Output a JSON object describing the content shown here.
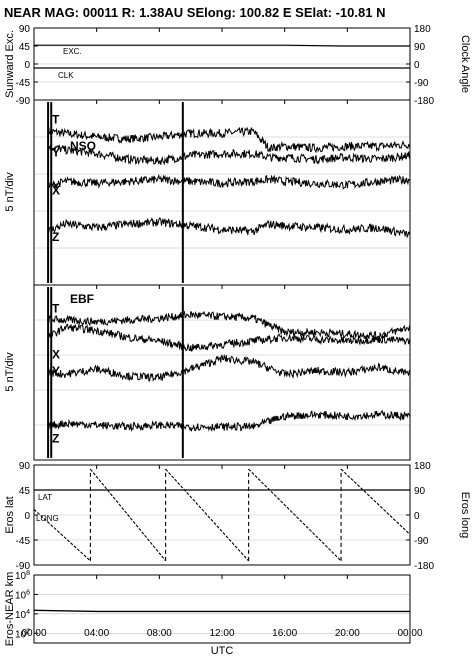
{
  "title": "NEAR MAG: 00011  R: 1.38AU  SElong: 100.82 E  SElat: -10.81 N",
  "x_axis": {
    "label": "UTC",
    "ticks": [
      "00:00",
      "04:00",
      "08:00",
      "12:00",
      "16:00",
      "20:00",
      "00:00"
    ]
  },
  "chart_data": [
    {
      "type": "line",
      "panel": "sunward",
      "ylabel": "Sunward Exc.",
      "ylabel_right": "Clock Angle",
      "ylim": [
        -90,
        90
      ],
      "ylim_right": [
        -180,
        180
      ],
      "yticks": [
        "90",
        "45",
        "0",
        "-45",
        "-90"
      ],
      "yticks_right": [
        "180",
        "90",
        "0",
        "-90",
        "-180"
      ],
      "grid": true,
      "x": [
        0,
        4,
        8,
        12,
        16,
        19.6,
        24
      ],
      "series": [
        {
          "name": "EXC.",
          "values": [
            47,
            47,
            47,
            47,
            47,
            45,
            45
          ]
        },
        {
          "name": "CLK",
          "values": [
            -10,
            -10,
            -10,
            -10,
            -10,
            -10,
            -10
          ]
        }
      ]
    },
    {
      "type": "line",
      "panel": "NSO",
      "panel_label": "NSO",
      "ylabel": "5 nT/div",
      "grid": true,
      "x": [
        0,
        2,
        4,
        6,
        8,
        10,
        12,
        14,
        15,
        16,
        18,
        20,
        22,
        24
      ],
      "series": [
        {
          "name": "T",
          "values": [
            8.4,
            8.2,
            8.0,
            7.9,
            8.0,
            8.2,
            8.2,
            8.3,
            7.4,
            7.5,
            7.4,
            7.5,
            7.5,
            7.6
          ]
        },
        {
          "name": "Y",
          "values": [
            7.7,
            7.3,
            7.1,
            6.8,
            6.7,
            7.0,
            7.1,
            7.1,
            6.9,
            6.9,
            6.8,
            6.9,
            6.8,
            7.0
          ]
        },
        {
          "name": "X",
          "values": [
            5.1,
            5.6,
            5.5,
            5.6,
            5.7,
            5.6,
            5.5,
            5.6,
            5.7,
            5.6,
            5.5,
            5.4,
            5.6,
            5.7
          ]
        },
        {
          "name": "Z",
          "values": [
            2.6,
            3.3,
            3.1,
            3.3,
            3.4,
            3.2,
            3.0,
            2.9,
            3.3,
            3.2,
            3.1,
            3.0,
            3.1,
            2.7
          ]
        }
      ]
    },
    {
      "type": "line",
      "panel": "EBF",
      "panel_label": "EBF",
      "ylabel": "5 nT/div",
      "grid": true,
      "x": [
        0,
        2,
        4,
        6,
        8,
        10,
        12,
        14,
        16,
        18,
        20,
        22,
        24
      ],
      "series": [
        {
          "name": "T",
          "values": [
            8.1,
            8.0,
            7.9,
            8.0,
            8.1,
            8.3,
            8.2,
            8.1,
            7.3,
            7.3,
            7.2,
            7.1,
            7.6
          ]
        },
        {
          "name": "X",
          "values": [
            6.5,
            7.6,
            7.4,
            7.0,
            6.8,
            6.4,
            6.6,
            6.8,
            7.0,
            6.9,
            6.8,
            6.9,
            6.8
          ]
        },
        {
          "name": "Y",
          "values": [
            5.1,
            4.9,
            5.2,
            4.8,
            4.7,
            5.2,
            5.8,
            5.6,
            4.9,
            5.1,
            5.0,
            5.3,
            4.9
          ]
        },
        {
          "name": "Z",
          "values": [
            1.8,
            2.1,
            2.0,
            1.9,
            2.0,
            1.9,
            1.9,
            1.9,
            2.5,
            2.6,
            2.5,
            2.6,
            2.5
          ]
        }
      ]
    },
    {
      "type": "line",
      "panel": "eros",
      "ylabel": "Eros lat",
      "ylabel_right": "Eros long",
      "ylim": [
        -90,
        90
      ],
      "ylim_right": [
        -180,
        180
      ],
      "yticks": [
        "90",
        "45",
        "0",
        "-45",
        "-90"
      ],
      "yticks_right": [
        "180",
        "90",
        "0",
        "-90",
        "-180"
      ],
      "grid": true,
      "series": [
        {
          "name": "LAT",
          "x": [
            0,
            24
          ],
          "values": [
            45,
            45
          ]
        },
        {
          "name": "LONG",
          "x": [
            0,
            3.6,
            3.6,
            8.4,
            8.4,
            13.7,
            13.7,
            19.6,
            19.6,
            24
          ],
          "values": [
            20,
            -165,
            165,
            -165,
            165,
            -165,
            165,
            -165,
            165,
            -70
          ]
        }
      ]
    },
    {
      "type": "line",
      "panel": "distance",
      "ylabel": "Eros-NEAR km",
      "log_scale": true,
      "ylim": [
        10,
        100000000
      ],
      "yticks": [
        "10^8",
        "10^6",
        "10^4",
        "10^2"
      ],
      "grid": true,
      "x": [
        0,
        4,
        24
      ],
      "series": [
        {
          "name": "range",
          "values": [
            23000,
            18000,
            18000
          ]
        }
      ]
    }
  ]
}
